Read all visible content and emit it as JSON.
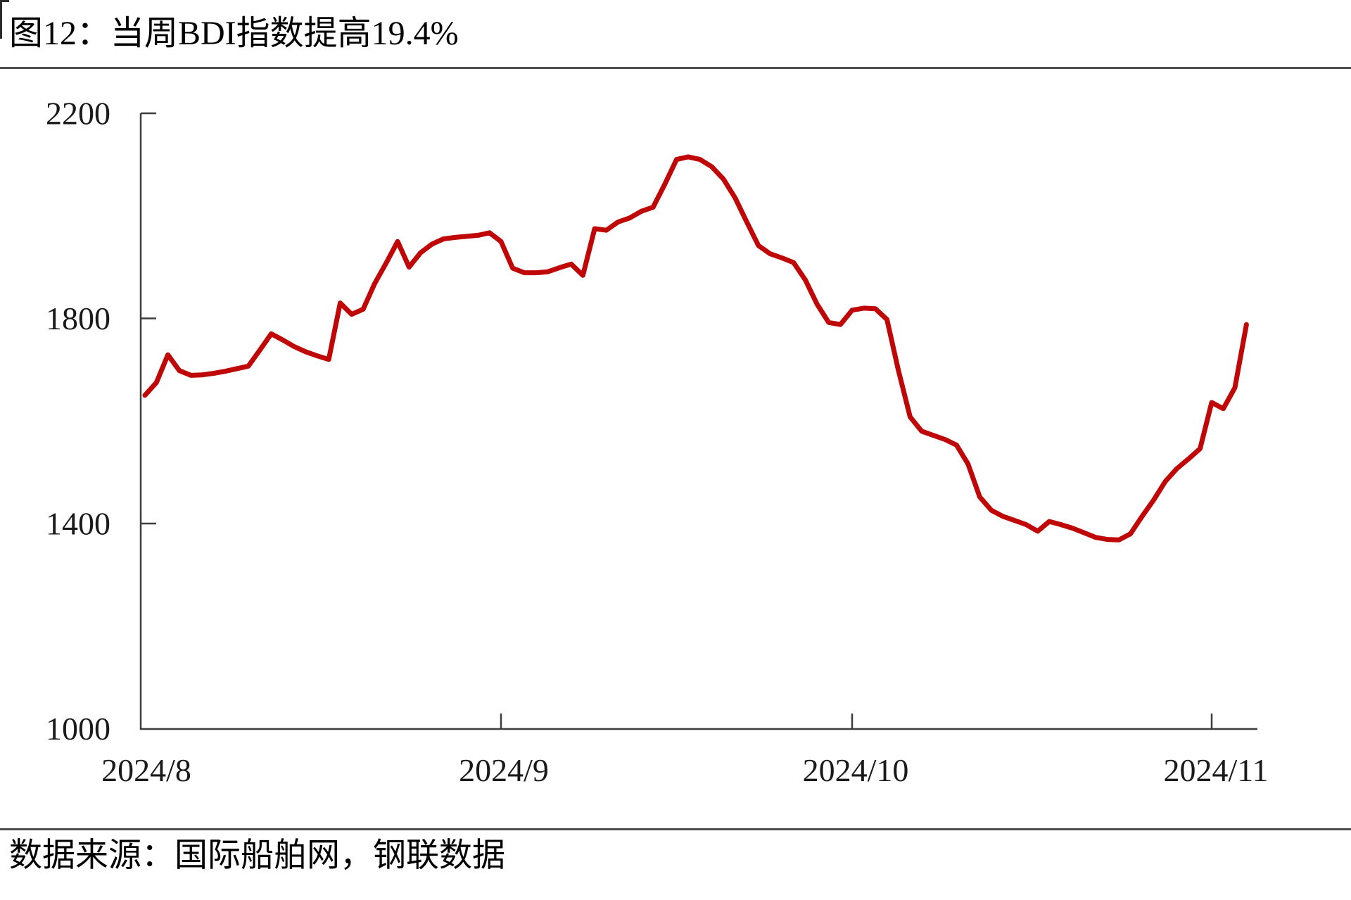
{
  "title": "图12：当周BDI指数提高19.4%",
  "source": "数据来源：国际船舶网，钢联数据",
  "colors": {
    "line": "#c00707",
    "axis": "#3d3d3d",
    "rule": "#4d4d4d",
    "text": "#000000"
  },
  "chart_data": {
    "type": "line",
    "title": "当周BDI指数提高19.4%",
    "series_name": "BDI指数",
    "xlabel": "",
    "ylabel": "",
    "ylim": [
      1000,
      2200
    ],
    "yticks": [
      "2200",
      "1800",
      "1400",
      "1000"
    ],
    "xticks": [
      "2024/8",
      "2024/9",
      "2024/10",
      "2024/11"
    ],
    "grid": false,
    "legend": "none",
    "points": [
      {
        "date": "2024/8/1",
        "value": 1650
      },
      {
        "date": "2024/8/2",
        "value": 1675
      },
      {
        "date": "2024/8/3",
        "value": 1729
      },
      {
        "date": "2024/8/4",
        "value": 1698
      },
      {
        "date": "2024/8/5",
        "value": 1689
      },
      {
        "date": "2024/8/6",
        "value": 1690
      },
      {
        "date": "2024/8/7",
        "value": 1693
      },
      {
        "date": "2024/8/8",
        "value": 1697
      },
      {
        "date": "2024/8/9",
        "value": 1702
      },
      {
        "date": "2024/8/10",
        "value": 1707
      },
      {
        "date": "2024/8/11",
        "value": 1738
      },
      {
        "date": "2024/8/12",
        "value": 1770
      },
      {
        "date": "2024/8/13",
        "value": 1758
      },
      {
        "date": "2024/8/14",
        "value": 1745
      },
      {
        "date": "2024/8/15",
        "value": 1735
      },
      {
        "date": "2024/8/16",
        "value": 1727
      },
      {
        "date": "2024/8/17",
        "value": 1720
      },
      {
        "date": "2024/8/18",
        "value": 1830
      },
      {
        "date": "2024/8/19",
        "value": 1808
      },
      {
        "date": "2024/8/20",
        "value": 1818
      },
      {
        "date": "2024/8/21",
        "value": 1868
      },
      {
        "date": "2024/8/22",
        "value": 1908
      },
      {
        "date": "2024/8/23",
        "value": 1950
      },
      {
        "date": "2024/8/24",
        "value": 1900
      },
      {
        "date": "2024/8/25",
        "value": 1928
      },
      {
        "date": "2024/8/26",
        "value": 1945
      },
      {
        "date": "2024/8/27",
        "value": 1955
      },
      {
        "date": "2024/8/28",
        "value": 1958
      },
      {
        "date": "2024/8/29",
        "value": 1960
      },
      {
        "date": "2024/8/30",
        "value": 1962
      },
      {
        "date": "2024/8/31",
        "value": 1967
      },
      {
        "date": "2024/9/1",
        "value": 1950
      },
      {
        "date": "2024/9/2",
        "value": 1898
      },
      {
        "date": "2024/9/3",
        "value": 1889
      },
      {
        "date": "2024/9/4",
        "value": 1889
      },
      {
        "date": "2024/9/5",
        "value": 1891
      },
      {
        "date": "2024/9/6",
        "value": 1899
      },
      {
        "date": "2024/9/7",
        "value": 1906
      },
      {
        "date": "2024/9/8",
        "value": 1884
      },
      {
        "date": "2024/9/9",
        "value": 1975
      },
      {
        "date": "2024/9/10",
        "value": 1972
      },
      {
        "date": "2024/9/11",
        "value": 1988
      },
      {
        "date": "2024/9/12",
        "value": 1996
      },
      {
        "date": "2024/9/13",
        "value": 2009
      },
      {
        "date": "2024/9/14",
        "value": 2017
      },
      {
        "date": "2024/9/15",
        "value": 2062
      },
      {
        "date": "2024/9/16",
        "value": 2110
      },
      {
        "date": "2024/9/17",
        "value": 2115
      },
      {
        "date": "2024/9/18",
        "value": 2110
      },
      {
        "date": "2024/9/19",
        "value": 2096
      },
      {
        "date": "2024/9/20",
        "value": 2072
      },
      {
        "date": "2024/9/21",
        "value": 2035
      },
      {
        "date": "2024/9/22",
        "value": 1988
      },
      {
        "date": "2024/9/23",
        "value": 1942
      },
      {
        "date": "2024/9/24",
        "value": 1926
      },
      {
        "date": "2024/9/25",
        "value": 1918
      },
      {
        "date": "2024/9/26",
        "value": 1909
      },
      {
        "date": "2024/9/27",
        "value": 1875
      },
      {
        "date": "2024/9/28",
        "value": 1828
      },
      {
        "date": "2024/9/29",
        "value": 1792
      },
      {
        "date": "2024/9/30",
        "value": 1788
      },
      {
        "date": "2024/10/1",
        "value": 1816
      },
      {
        "date": "2024/10/2",
        "value": 1820
      },
      {
        "date": "2024/10/3",
        "value": 1819
      },
      {
        "date": "2024/10/4",
        "value": 1798
      },
      {
        "date": "2024/10/5",
        "value": 1698
      },
      {
        "date": "2024/10/6",
        "value": 1608
      },
      {
        "date": "2024/10/7",
        "value": 1580
      },
      {
        "date": "2024/10/8",
        "value": 1572
      },
      {
        "date": "2024/10/9",
        "value": 1564
      },
      {
        "date": "2024/10/10",
        "value": 1553
      },
      {
        "date": "2024/10/11",
        "value": 1516
      },
      {
        "date": "2024/10/12",
        "value": 1452
      },
      {
        "date": "2024/10/13",
        "value": 1426
      },
      {
        "date": "2024/10/14",
        "value": 1414
      },
      {
        "date": "2024/10/15",
        "value": 1406
      },
      {
        "date": "2024/10/16",
        "value": 1398
      },
      {
        "date": "2024/10/17",
        "value": 1385
      },
      {
        "date": "2024/10/18",
        "value": 1404
      },
      {
        "date": "2024/10/19",
        "value": 1398
      },
      {
        "date": "2024/10/20",
        "value": 1391
      },
      {
        "date": "2024/10/21",
        "value": 1382
      },
      {
        "date": "2024/10/22",
        "value": 1373
      },
      {
        "date": "2024/10/23",
        "value": 1369
      },
      {
        "date": "2024/10/24",
        "value": 1368
      },
      {
        "date": "2024/10/25",
        "value": 1380
      },
      {
        "date": "2024/10/26",
        "value": 1414
      },
      {
        "date": "2024/10/27",
        "value": 1446
      },
      {
        "date": "2024/10/28",
        "value": 1482
      },
      {
        "date": "2024/10/29",
        "value": 1507
      },
      {
        "date": "2024/10/30",
        "value": 1526
      },
      {
        "date": "2024/10/31",
        "value": 1546
      },
      {
        "date": "2024/11/1",
        "value": 1636
      },
      {
        "date": "2024/11/2",
        "value": 1624
      },
      {
        "date": "2024/11/3",
        "value": 1665
      },
      {
        "date": "2024/11/4",
        "value": 1788
      }
    ]
  }
}
